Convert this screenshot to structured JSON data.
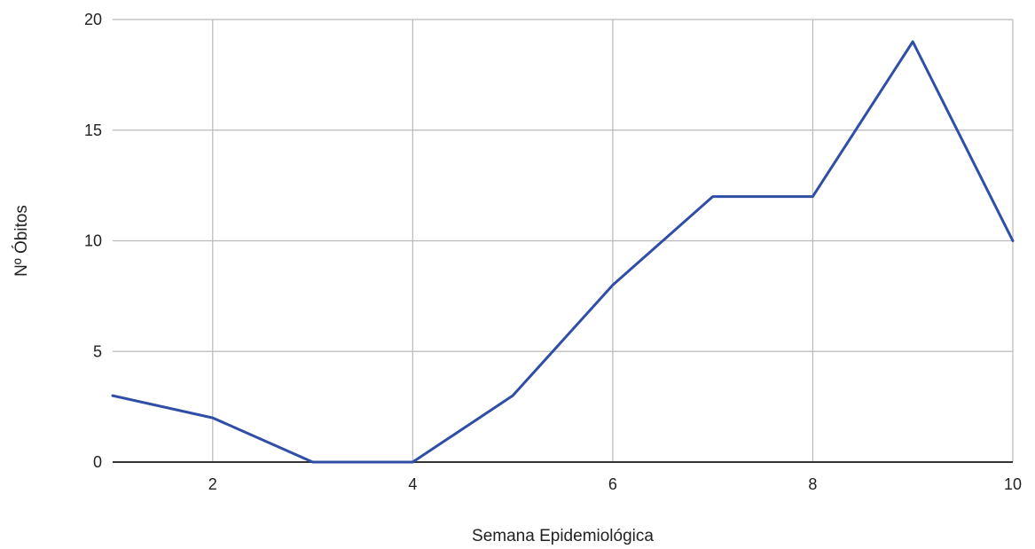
{
  "chart_data": {
    "type": "line",
    "xlabel": "Semana Epidemiológica",
    "ylabel": "Nº Óbitos",
    "xlim": [
      1,
      10
    ],
    "ylim": [
      0,
      20
    ],
    "x_ticks": [
      2,
      4,
      6,
      8,
      10
    ],
    "y_ticks": [
      0,
      5,
      10,
      15,
      20
    ],
    "grid": true,
    "series": [
      {
        "x": [
          1,
          2,
          3,
          4,
          5,
          6,
          7,
          8,
          9,
          10
        ],
        "values": [
          3,
          2,
          0,
          0,
          3,
          8,
          12,
          12,
          19,
          10
        ],
        "color": "#2f4ea5"
      }
    ]
  }
}
